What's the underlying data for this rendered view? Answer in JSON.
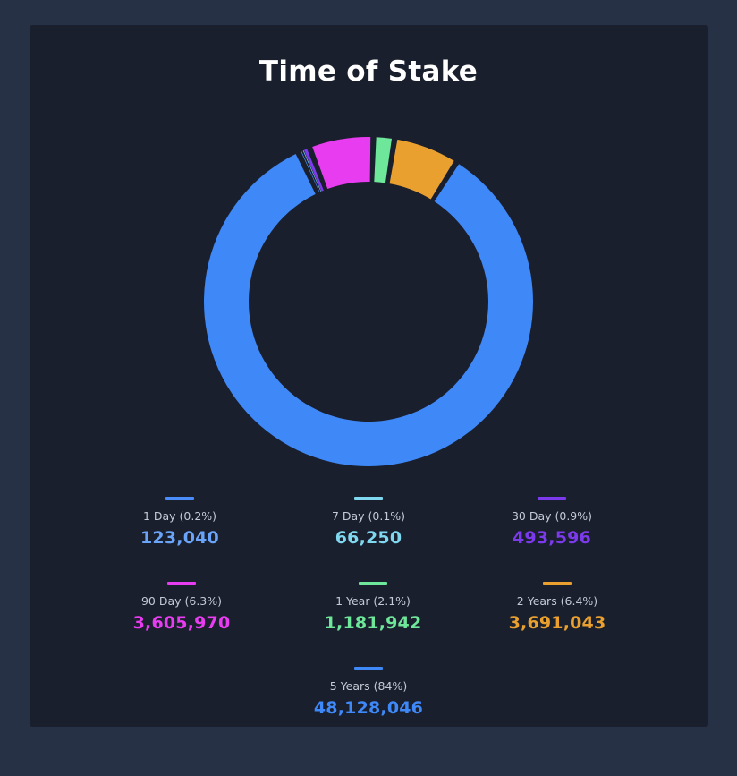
{
  "chart_data": {
    "type": "pie",
    "variant": "donut",
    "title": "Time of Stake",
    "legend_placement": "bottom",
    "slices": [
      {
        "label": "1 Day (0.2%)",
        "value": 123040,
        "value_text": "123,040",
        "color": "#4a8df8",
        "label_color": "#6aa4f8"
      },
      {
        "label": "7 Day (0.1%)",
        "value": 66250,
        "value_text": "66,250",
        "color": "#7fd8ef",
        "label_color": "#7fd8ef"
      },
      {
        "label": "30 Day (0.9%)",
        "value": 493596,
        "value_text": "493,596",
        "color": "#7c3aed",
        "label_color": "#7c3aed"
      },
      {
        "label": "90 Day (6.3%)",
        "value": 3605970,
        "value_text": "3,605,970",
        "color": "#e83cf0",
        "label_color": "#e83cf0"
      },
      {
        "label": "1 Year (2.1%)",
        "value": 1181942,
        "value_text": "1,181,942",
        "color": "#6ee79a",
        "label_color": "#6ee79a"
      },
      {
        "label": "2 Years (6.4%)",
        "value": 3691043,
        "value_text": "3,691,043",
        "color": "#e9a02f",
        "label_color": "#e9a02f"
      },
      {
        "label": "5 Years (84%)",
        "value": 48128046,
        "value_text": "48,128,046",
        "color": "#3f88f7",
        "label_color": "#3f88f7"
      }
    ]
  }
}
